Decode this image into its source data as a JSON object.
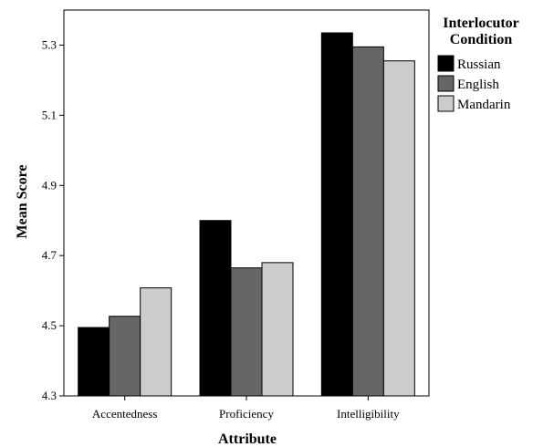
{
  "chart_data": {
    "type": "bar",
    "categories": [
      "Accentedness",
      "Proficiency",
      "Intelligibility"
    ],
    "series": [
      {
        "name": "Russian",
        "color": "#000000",
        "values": [
          4.495,
          4.8,
          5.335
        ]
      },
      {
        "name": "English",
        "color": "#666666",
        "values": [
          4.527,
          4.665,
          5.295
        ]
      },
      {
        "name": "Mandarin",
        "color": "#cccccc",
        "values": [
          4.608,
          4.68,
          5.255
        ]
      }
    ],
    "title": "",
    "xlabel": "Attribute",
    "ylabel": "Mean Score",
    "ylim": [
      4.3,
      5.4
    ],
    "yticks": [
      "4.3",
      "4.5",
      "4.7",
      "4.9",
      "5.1",
      "5.3"
    ],
    "legend": {
      "title_lines": [
        "Interlocutor",
        "Condition"
      ],
      "position": "right"
    },
    "grid": false
  }
}
